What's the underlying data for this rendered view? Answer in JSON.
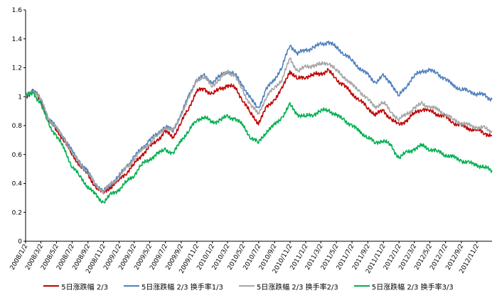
{
  "chart_data": {
    "type": "line",
    "title": "",
    "xlabel": "",
    "ylabel": "",
    "ylim": [
      0,
      1.6
    ],
    "yticks": [
      "0",
      "0.2",
      "0.4",
      "0.6",
      "0.8",
      "1",
      "1.2",
      "1.4",
      "1.6"
    ],
    "xlim": [
      "2008/1/2",
      "2012/12/31"
    ],
    "xticks": [
      "2008/1/2",
      "2008/3/2",
      "2008/5/2",
      "2008/7/2",
      "2008/9/2",
      "2008/11/2",
      "2009/1/2",
      "2009/3/2",
      "2009/5/2",
      "2009/7/2",
      "2009/9/2",
      "2009/11/2",
      "2010/1/2",
      "2010/3/2",
      "2010/5/2",
      "2010/7/2",
      "2010/9/2",
      "2010/11/2",
      "2011/1/2",
      "2011/3/2",
      "2011/5/2",
      "2011/7/2",
      "2011/9/2",
      "2011/11/2",
      "2012/1/2",
      "2012/3/2",
      "2012/5/2",
      "2012/7/2",
      "2012/9/2",
      "2012/11/2"
    ],
    "grid": false,
    "legend_position": "bottom",
    "x": [
      "2008/1/2",
      "2008/2/1",
      "2008/3/1",
      "2008/4/1",
      "2008/5/1",
      "2008/6/1",
      "2008/7/1",
      "2008/8/1",
      "2008/9/1",
      "2008/10/1",
      "2008/11/1",
      "2008/12/1",
      "2009/1/1",
      "2009/2/1",
      "2009/3/1",
      "2009/4/1",
      "2009/5/1",
      "2009/6/1",
      "2009/7/1",
      "2009/8/1",
      "2009/9/1",
      "2009/10/1",
      "2009/11/1",
      "2009/12/1",
      "2010/1/1",
      "2010/2/1",
      "2010/3/1",
      "2010/4/1",
      "2010/5/1",
      "2010/6/1",
      "2010/7/1",
      "2010/8/1",
      "2010/9/1",
      "2010/10/1",
      "2010/11/1",
      "2010/12/1",
      "2011/1/1",
      "2011/2/1",
      "2011/3/1",
      "2011/4/1",
      "2011/5/1",
      "2011/6/1",
      "2011/7/1",
      "2011/8/1",
      "2011/9/1",
      "2011/10/1",
      "2011/11/1",
      "2011/12/1",
      "2012/1/1",
      "2012/2/1",
      "2012/3/1",
      "2012/4/1",
      "2012/5/1",
      "2012/6/1",
      "2012/7/1",
      "2012/8/1",
      "2012/9/1",
      "2012/10/1",
      "2012/11/1",
      "2012/12/1",
      "2012/12/31"
    ],
    "series": [
      {
        "name": "5日涨跌幅 2/3",
        "color": "#c00000",
        "values": [
          1.0,
          1.04,
          0.97,
          0.84,
          0.77,
          0.7,
          0.6,
          0.53,
          0.46,
          0.38,
          0.33,
          0.38,
          0.42,
          0.48,
          0.53,
          0.6,
          0.65,
          0.7,
          0.76,
          0.72,
          0.82,
          0.92,
          1.04,
          1.05,
          1.02,
          1.05,
          1.08,
          1.06,
          0.98,
          0.88,
          0.82,
          0.92,
          0.98,
          1.05,
          1.18,
          1.12,
          1.14,
          1.15,
          1.16,
          1.18,
          1.12,
          1.08,
          1.02,
          0.98,
          0.92,
          0.88,
          0.9,
          0.85,
          0.8,
          0.84,
          0.88,
          0.92,
          0.9,
          0.88,
          0.86,
          0.82,
          0.8,
          0.78,
          0.77,
          0.75,
          0.73
        ]
      },
      {
        "name": "5日涨跌幅 2/3 换手率1/3",
        "color": "#4f81bd",
        "values": [
          1.0,
          1.05,
          0.98,
          0.86,
          0.78,
          0.72,
          0.62,
          0.55,
          0.48,
          0.4,
          0.34,
          0.4,
          0.45,
          0.52,
          0.58,
          0.64,
          0.7,
          0.74,
          0.8,
          0.76,
          0.88,
          1.0,
          1.12,
          1.14,
          1.1,
          1.14,
          1.18,
          1.15,
          1.08,
          0.98,
          0.92,
          1.05,
          1.12,
          1.2,
          1.36,
          1.3,
          1.32,
          1.34,
          1.36,
          1.38,
          1.34,
          1.3,
          1.25,
          1.2,
          1.15,
          1.1,
          1.14,
          1.1,
          1.0,
          1.08,
          1.14,
          1.18,
          1.18,
          1.16,
          1.12,
          1.08,
          1.05,
          1.04,
          1.02,
          1.01,
          0.98
        ]
      },
      {
        "name": "5日涨跌幅 2/3 换手率2/3",
        "color": "#a6a6a6",
        "values": [
          1.0,
          1.05,
          0.98,
          0.85,
          0.78,
          0.71,
          0.61,
          0.54,
          0.47,
          0.4,
          0.34,
          0.4,
          0.44,
          0.51,
          0.57,
          0.63,
          0.68,
          0.73,
          0.79,
          0.76,
          0.88,
          0.98,
          1.12,
          1.13,
          1.08,
          1.12,
          1.18,
          1.14,
          1.04,
          0.94,
          0.88,
          1.0,
          1.06,
          1.12,
          1.26,
          1.18,
          1.2,
          1.22,
          1.22,
          1.24,
          1.18,
          1.14,
          1.08,
          1.04,
          0.98,
          0.93,
          0.96,
          0.9,
          0.84,
          0.88,
          0.92,
          0.95,
          0.93,
          0.91,
          0.88,
          0.84,
          0.82,
          0.8,
          0.79,
          0.78,
          0.76
        ]
      },
      {
        "name": "5日涨跌幅 2/3 换手率3/3",
        "color": "#00b050",
        "values": [
          1.0,
          1.03,
          0.95,
          0.81,
          0.73,
          0.64,
          0.52,
          0.45,
          0.38,
          0.32,
          0.27,
          0.32,
          0.36,
          0.41,
          0.46,
          0.53,
          0.57,
          0.6,
          0.64,
          0.6,
          0.7,
          0.76,
          0.84,
          0.86,
          0.82,
          0.84,
          0.86,
          0.85,
          0.8,
          0.72,
          0.68,
          0.76,
          0.8,
          0.86,
          0.94,
          0.88,
          0.86,
          0.88,
          0.9,
          0.91,
          0.87,
          0.84,
          0.8,
          0.76,
          0.72,
          0.68,
          0.7,
          0.66,
          0.58,
          0.61,
          0.64,
          0.66,
          0.64,
          0.62,
          0.6,
          0.58,
          0.56,
          0.54,
          0.53,
          0.51,
          0.49
        ]
      }
    ]
  }
}
